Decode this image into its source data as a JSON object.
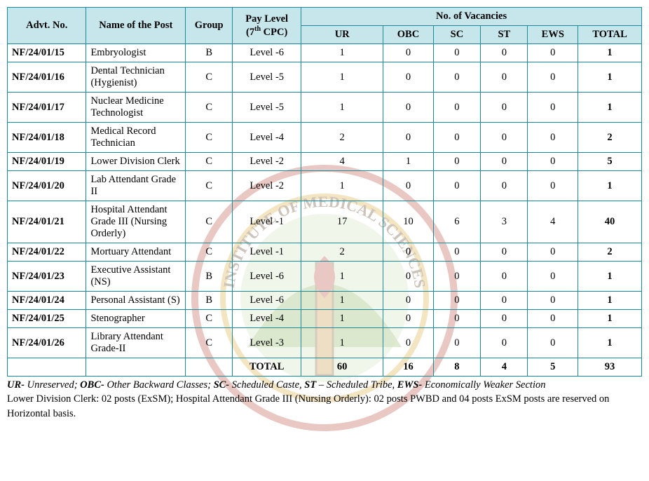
{
  "headers": {
    "advt": "Advt. No.",
    "post": "Name of the Post",
    "group": "Group",
    "pay_html": "Pay Level<br>(7<sup>th</sup> CPC)",
    "vac": "No. of Vacancies",
    "ur": "UR",
    "obc": "OBC",
    "sc": "SC",
    "st": "ST",
    "ews": "EWS",
    "total": "TOTAL"
  },
  "rows": [
    {
      "advt": "NF/24/01/15",
      "post": "Embryologist",
      "group": "B",
      "pay": "Level -6",
      "ur": 1,
      "obc": 0,
      "sc": 0,
      "st": 0,
      "ews": 0,
      "total": 1
    },
    {
      "advt": "NF/24/01/16",
      "post": "Dental Technician (Hygienist)",
      "group": "C",
      "pay": "Level -5",
      "ur": 1,
      "obc": 0,
      "sc": 0,
      "st": 0,
      "ews": 0,
      "total": 1
    },
    {
      "advt": "NF/24/01/17",
      "post": "Nuclear Medicine Technologist",
      "group": "C",
      "pay": "Level -5",
      "ur": 1,
      "obc": 0,
      "sc": 0,
      "st": 0,
      "ews": 0,
      "total": 1
    },
    {
      "advt": "NF/24/01/18",
      "post": "Medical Record Technician",
      "group": "C",
      "pay": "Level -4",
      "ur": 2,
      "obc": 0,
      "sc": 0,
      "st": 0,
      "ews": 0,
      "total": 2
    },
    {
      "advt": "NF/24/01/19",
      "post": "Lower Division Clerk",
      "group": "C",
      "pay": "Level -2",
      "ur": 4,
      "obc": 1,
      "sc": 0,
      "st": 0,
      "ews": 0,
      "total": 5
    },
    {
      "advt": "NF/24/01/20",
      "post": "Lab Attendant Grade II",
      "group": "C",
      "pay": "Level -2",
      "ur": 1,
      "obc": 0,
      "sc": 0,
      "st": 0,
      "ews": 0,
      "total": 1
    },
    {
      "advt": "NF/24/01/21",
      "post": "Hospital Attendant Grade III (Nursing Orderly)",
      "group": "C",
      "pay": "Level -1",
      "ur": 17,
      "obc": 10,
      "sc": 6,
      "st": 3,
      "ews": 4,
      "total": 40
    },
    {
      "advt": "NF/24/01/22",
      "post": "Mortuary Attendant",
      "group": "C",
      "pay": "Level -1",
      "ur": 2,
      "obc": 0,
      "sc": 0,
      "st": 0,
      "ews": 0,
      "total": 2
    },
    {
      "advt": "NF/24/01/23",
      "post": "Executive Assistant  (NS)",
      "group": "B",
      "pay": "Level -6",
      "ur": 1,
      "obc": 0,
      "sc": 0,
      "st": 0,
      "ews": 0,
      "total": 1
    },
    {
      "advt": "NF/24/01/24",
      "post": "Personal Assistant (S)",
      "group": "B",
      "pay": "Level -6",
      "ur": 1,
      "obc": 0,
      "sc": 0,
      "st": 0,
      "ews": 0,
      "total": 1
    },
    {
      "advt": "NF/24/01/25",
      "post": "Stenographer",
      "group": "C",
      "pay": "Level -4",
      "ur": 1,
      "obc": 0,
      "sc": 0,
      "st": 0,
      "ews": 0,
      "total": 1
    },
    {
      "advt": "NF/24/01/26",
      "post": "Library Attendant Grade-II",
      "group": "C",
      "pay": "Level -3",
      "ur": 1,
      "obc": 0,
      "sc": 0,
      "st": 0,
      "ews": 0,
      "total": 1
    }
  ],
  "totals": {
    "label": "TOTAL",
    "ur": 60,
    "obc": 16,
    "sc": 8,
    "st": 4,
    "ews": 5,
    "total": 93
  },
  "footnote": {
    "line1_html": "<b><i>UR-</i></b> <i>Unreserved;</i> <b><i>OBC-</i></b> <i>Other Backward Classes;</i> <b><i>SC-</i></b> <i>Scheduled Caste,</i> <b><i>ST</i></b> <i>– Scheduled Tribe,</i> <b><i>EWS-</i></b> <i>Economically Weaker Section</i>",
    "line2": "Lower Division Clerk: 02 posts (ExSM); Hospital Attendant Grade III (Nursing Orderly): 02 posts PWBD and 04 posts ExSM posts are reserved on Horizontal basis."
  },
  "colors": {
    "border": "#198a99",
    "header_bg": "#c7e6ec",
    "text": "#000000"
  }
}
